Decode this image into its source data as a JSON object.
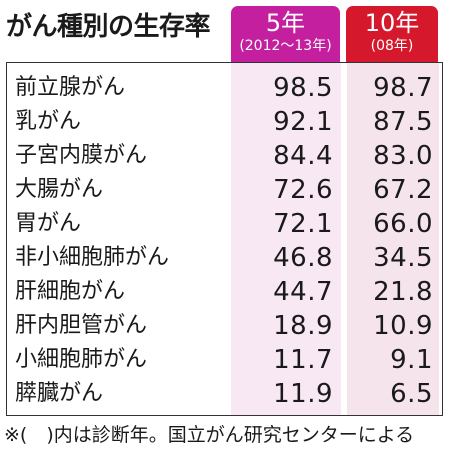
{
  "title": "がん種別の生存率",
  "headers": {
    "five_year": {
      "label": "5年",
      "sub": "(2012〜13年)",
      "color": "#c41f9f"
    },
    "ten_year": {
      "label": "10年",
      "sub": "(08年)",
      "color": "#d6182d"
    }
  },
  "rows": [
    {
      "name": "前立腺がん",
      "five": "98.5",
      "ten": "98.7"
    },
    {
      "name": "乳がん",
      "five": "92.1",
      "ten": "87.5"
    },
    {
      "name": "子宮内膜がん",
      "five": "84.4",
      "ten": "83.0"
    },
    {
      "name": "大腸がん",
      "five": "72.6",
      "ten": "67.2"
    },
    {
      "name": "胃がん",
      "five": "72.1",
      "ten": "66.0"
    },
    {
      "name": "非小細胞肺がん",
      "five": "46.8",
      "ten": "34.5"
    },
    {
      "name": "肝細胞がん",
      "five": "44.7",
      "ten": "21.8"
    },
    {
      "name": "肝内胆管がん",
      "five": "18.9",
      "ten": "10.9"
    },
    {
      "name": "小細胞肺がん",
      "five": "11.7",
      "ten": "9.1"
    },
    {
      "name": "膵臓がん",
      "five": "11.9",
      "ten": "6.5"
    }
  ],
  "note": "※(　)内は診断年。国立がん研究センターによる"
}
